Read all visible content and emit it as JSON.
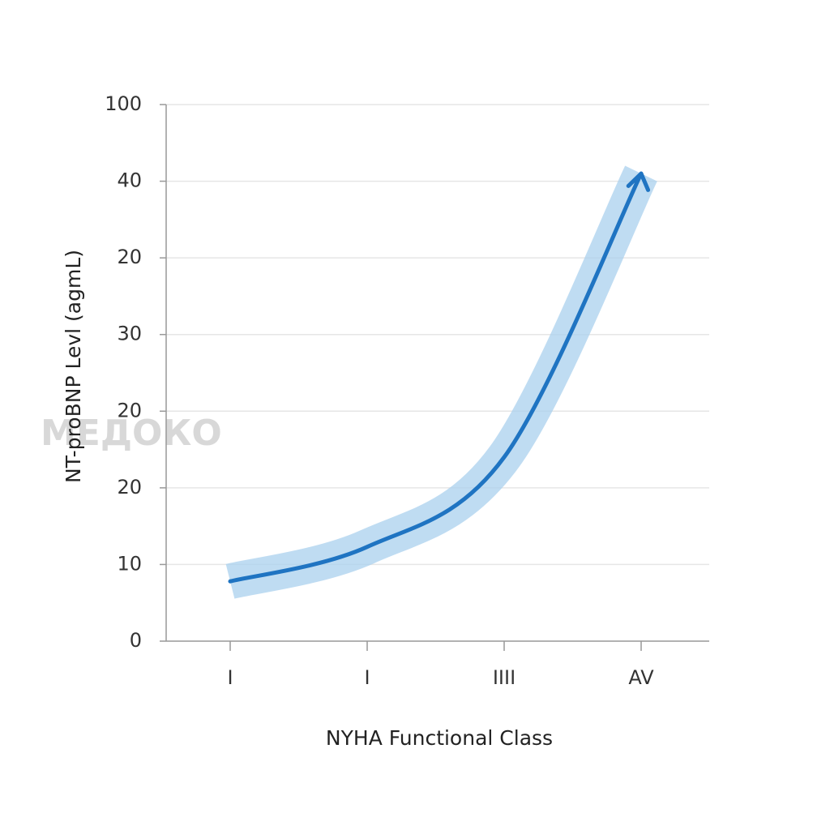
{
  "chart_data": {
    "type": "line",
    "y_label": "NT-proBNP Levl (agmL)",
    "x_label": "NYHA Functional Class",
    "watermark": "МЕДОКО",
    "categories": [
      "I",
      "I",
      "IIII",
      "AV"
    ],
    "series": [
      {
        "name": "NT-proBNP",
        "color": "#1f74c2",
        "values": [
          0.78,
          1.23,
          2.4,
          6.1
        ]
      }
    ],
    "band_color": "#a9d0ee",
    "ylim": [
      0,
      7
    ],
    "yticks": [
      0,
      {
        "value": 1,
        "label": "10"
      },
      {
        "value": 2,
        "label": "20"
      },
      {
        "value": 3,
        "label": "20"
      },
      {
        "value": 4,
        "label": "30"
      },
      {
        "value": 5,
        "label": "20"
      },
      {
        "value": 6,
        "label": "40"
      },
      {
        "value": 7,
        "label": "100"
      }
    ],
    "grid": true
  }
}
